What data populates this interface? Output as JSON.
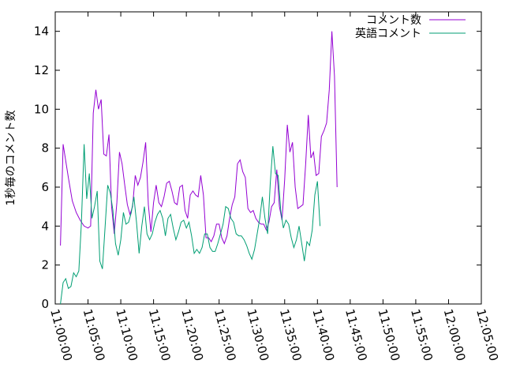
{
  "chart_data": {
    "type": "line",
    "ylabel": "1秒毎のコメント数",
    "xlabel": "",
    "title": "",
    "ylim": [
      0,
      15
    ],
    "xlim": [
      "11:00:00",
      "12:05:00"
    ],
    "yticks": [
      0,
      2,
      4,
      6,
      8,
      10,
      12,
      14
    ],
    "xticks": [
      "11:00:00",
      "11:05:00",
      "11:10:00",
      "11:15:00",
      "11:20:00",
      "11:25:00",
      "11:30:00",
      "11:35:00",
      "11:40:00",
      "11:45:00",
      "11:50:00",
      "11:55:00",
      "12:00:00",
      "12:05:00"
    ],
    "grid": false,
    "legend_position": "top-right",
    "series": [
      {
        "name": "コメント数",
        "color": "#9400d3",
        "points": [
          [
            "11:00:48",
            3.0
          ],
          [
            "11:01:12",
            8.2
          ],
          [
            "11:02:00",
            6.5
          ],
          [
            "11:02:36",
            5.3
          ],
          [
            "11:03:12",
            4.7
          ],
          [
            "11:03:48",
            4.3
          ],
          [
            "11:04:24",
            4.0
          ],
          [
            "11:05:00",
            3.9
          ],
          [
            "11:05:24",
            4.0
          ],
          [
            "11:05:48",
            9.8
          ],
          [
            "11:06:12",
            11.0
          ],
          [
            "11:06:36",
            10.0
          ],
          [
            "11:07:00",
            10.5
          ],
          [
            "11:07:24",
            7.7
          ],
          [
            "11:07:48",
            7.6
          ],
          [
            "11:08:12",
            8.7
          ],
          [
            "11:08:36",
            5.0
          ],
          [
            "11:09:00",
            3.6
          ],
          [
            "11:09:24",
            5.2
          ],
          [
            "11:09:48",
            7.8
          ],
          [
            "11:10:12",
            7.2
          ],
          [
            "11:10:36",
            6.1
          ],
          [
            "11:11:00",
            5.1
          ],
          [
            "11:11:24",
            4.6
          ],
          [
            "11:11:48",
            5.0
          ],
          [
            "11:12:12",
            6.6
          ],
          [
            "11:12:36",
            6.1
          ],
          [
            "11:13:00",
            6.5
          ],
          [
            "11:13:24",
            7.3
          ],
          [
            "11:13:48",
            8.3
          ],
          [
            "11:14:12",
            5.1
          ],
          [
            "11:14:36",
            3.7
          ],
          [
            "11:15:00",
            5.2
          ],
          [
            "11:15:24",
            6.1
          ],
          [
            "11:15:48",
            5.2
          ],
          [
            "11:16:12",
            5.0
          ],
          [
            "11:16:36",
            5.5
          ],
          [
            "11:17:00",
            6.2
          ],
          [
            "11:17:24",
            6.3
          ],
          [
            "11:17:48",
            5.8
          ],
          [
            "11:18:12",
            5.2
          ],
          [
            "11:18:36",
            5.1
          ],
          [
            "11:19:00",
            6.0
          ],
          [
            "11:19:24",
            6.1
          ],
          [
            "11:19:48",
            4.8
          ],
          [
            "11:20:12",
            4.4
          ],
          [
            "11:20:36",
            5.6
          ],
          [
            "11:21:00",
            5.8
          ],
          [
            "11:21:24",
            5.6
          ],
          [
            "11:21:48",
            5.5
          ],
          [
            "11:22:12",
            6.6
          ],
          [
            "11:22:36",
            5.6
          ],
          [
            "11:23:00",
            3.4
          ],
          [
            "11:23:24",
            3.4
          ],
          [
            "11:23:48",
            3.2
          ],
          [
            "11:24:12",
            3.5
          ],
          [
            "11:24:36",
            4.1
          ],
          [
            "11:25:00",
            4.1
          ],
          [
            "11:25:24",
            3.4
          ],
          [
            "11:25:48",
            3.1
          ],
          [
            "11:26:12",
            3.5
          ],
          [
            "11:26:36",
            4.4
          ],
          [
            "11:27:00",
            5.1
          ],
          [
            "11:27:24",
            5.5
          ],
          [
            "11:27:48",
            7.2
          ],
          [
            "11:28:12",
            7.4
          ],
          [
            "11:28:36",
            6.8
          ],
          [
            "11:29:00",
            6.5
          ],
          [
            "11:29:24",
            4.9
          ],
          [
            "11:29:48",
            4.7
          ],
          [
            "11:30:12",
            4.8
          ],
          [
            "11:30:36",
            4.4
          ],
          [
            "11:31:00",
            4.2
          ],
          [
            "11:31:24",
            4.1
          ],
          [
            "11:31:48",
            4.1
          ],
          [
            "11:32:12",
            3.8
          ],
          [
            "11:32:36",
            4.2
          ],
          [
            "11:33:00",
            5.0
          ],
          [
            "11:33:24",
            5.2
          ],
          [
            "11:33:48",
            6.9
          ],
          [
            "11:34:12",
            5.0
          ],
          [
            "11:34:36",
            4.3
          ],
          [
            "11:35:00",
            6.4
          ],
          [
            "11:35:24",
            9.2
          ],
          [
            "11:35:48",
            7.8
          ],
          [
            "11:36:12",
            8.3
          ],
          [
            "11:36:36",
            6.0
          ],
          [
            "11:37:00",
            4.9
          ],
          [
            "11:37:24",
            5.0
          ],
          [
            "11:37:48",
            5.1
          ],
          [
            "11:38:12",
            7.2
          ],
          [
            "11:38:36",
            9.7
          ],
          [
            "11:39:00",
            7.5
          ],
          [
            "11:39:24",
            7.8
          ],
          [
            "11:39:48",
            6.6
          ],
          [
            "11:40:12",
            6.7
          ],
          [
            "11:40:36",
            8.6
          ],
          [
            "11:41:00",
            8.9
          ],
          [
            "11:41:24",
            9.3
          ],
          [
            "11:41:48",
            11.0
          ],
          [
            "11:42:12",
            14.0
          ],
          [
            "11:42:36",
            11.7
          ],
          [
            "11:43:00",
            6.0
          ]
        ]
      },
      {
        "name": "英語コメント",
        "color": "#009e73",
        "points": [
          [
            "11:00:48",
            0.0
          ],
          [
            "11:01:12",
            1.1
          ],
          [
            "11:01:36",
            1.3
          ],
          [
            "11:02:00",
            0.8
          ],
          [
            "11:02:24",
            0.9
          ],
          [
            "11:02:48",
            1.6
          ],
          [
            "11:03:12",
            1.4
          ],
          [
            "11:03:36",
            1.7
          ],
          [
            "11:04:00",
            4.2
          ],
          [
            "11:04:24",
            8.2
          ],
          [
            "11:04:48",
            5.4
          ],
          [
            "11:05:12",
            6.7
          ],
          [
            "11:05:36",
            4.4
          ],
          [
            "11:06:00",
            5.0
          ],
          [
            "11:06:24",
            5.8
          ],
          [
            "11:06:48",
            2.2
          ],
          [
            "11:07:12",
            1.8
          ],
          [
            "11:07:36",
            3.9
          ],
          [
            "11:08:00",
            6.1
          ],
          [
            "11:08:24",
            5.7
          ],
          [
            "11:08:48",
            4.8
          ],
          [
            "11:09:12",
            3.1
          ],
          [
            "11:09:36",
            2.5
          ],
          [
            "11:10:00",
            3.3
          ],
          [
            "11:10:24",
            4.7
          ],
          [
            "11:10:48",
            4.1
          ],
          [
            "11:11:12",
            4.2
          ],
          [
            "11:11:36",
            4.7
          ],
          [
            "11:12:00",
            5.5
          ],
          [
            "11:12:24",
            4.2
          ],
          [
            "11:12:48",
            2.6
          ],
          [
            "11:13:12",
            4.0
          ],
          [
            "11:13:36",
            5.0
          ],
          [
            "11:14:00",
            3.6
          ],
          [
            "11:14:24",
            3.3
          ],
          [
            "11:14:48",
            3.6
          ],
          [
            "11:15:12",
            4.2
          ],
          [
            "11:15:36",
            4.6
          ],
          [
            "11:16:00",
            4.8
          ],
          [
            "11:16:24",
            4.4
          ],
          [
            "11:16:48",
            3.5
          ],
          [
            "11:17:12",
            4.4
          ],
          [
            "11:17:36",
            4.6
          ],
          [
            "11:18:00",
            3.9
          ],
          [
            "11:18:24",
            3.3
          ],
          [
            "11:18:48",
            3.7
          ],
          [
            "11:19:12",
            4.2
          ],
          [
            "11:19:36",
            4.3
          ],
          [
            "11:20:00",
            3.9
          ],
          [
            "11:20:24",
            4.2
          ],
          [
            "11:20:48",
            3.5
          ],
          [
            "11:21:12",
            2.6
          ],
          [
            "11:21:36",
            2.8
          ],
          [
            "11:22:00",
            2.6
          ],
          [
            "11:22:24",
            2.9
          ],
          [
            "11:22:48",
            3.6
          ],
          [
            "11:23:12",
            3.6
          ],
          [
            "11:23:36",
            2.9
          ],
          [
            "11:24:00",
            2.7
          ],
          [
            "11:24:24",
            2.7
          ],
          [
            "11:24:48",
            3.1
          ],
          [
            "11:25:12",
            3.6
          ],
          [
            "11:25:36",
            4.1
          ],
          [
            "11:26:00",
            5.0
          ],
          [
            "11:26:24",
            4.9
          ],
          [
            "11:26:48",
            4.4
          ],
          [
            "11:27:12",
            4.2
          ],
          [
            "11:27:36",
            3.6
          ],
          [
            "11:28:00",
            3.5
          ],
          [
            "11:28:24",
            3.5
          ],
          [
            "11:28:48",
            3.3
          ],
          [
            "11:29:12",
            3.0
          ],
          [
            "11:29:36",
            2.6
          ],
          [
            "11:30:00",
            2.3
          ],
          [
            "11:30:24",
            2.8
          ],
          [
            "11:30:48",
            3.6
          ],
          [
            "11:31:12",
            4.4
          ],
          [
            "11:31:36",
            5.5
          ],
          [
            "11:32:00",
            4.4
          ],
          [
            "11:32:24",
            3.6
          ],
          [
            "11:32:48",
            6.2
          ],
          [
            "11:33:12",
            8.1
          ],
          [
            "11:33:36",
            6.7
          ],
          [
            "11:34:00",
            6.6
          ],
          [
            "11:34:24",
            4.8
          ],
          [
            "11:34:48",
            3.9
          ],
          [
            "11:35:12",
            4.3
          ],
          [
            "11:35:36",
            4.1
          ],
          [
            "11:36:00",
            3.4
          ],
          [
            "11:36:24",
            2.9
          ],
          [
            "11:36:48",
            3.3
          ],
          [
            "11:37:12",
            4.0
          ],
          [
            "11:37:36",
            3.1
          ],
          [
            "11:38:00",
            2.2
          ],
          [
            "11:38:24",
            3.2
          ],
          [
            "11:38:48",
            3.0
          ],
          [
            "11:39:12",
            3.8
          ],
          [
            "11:39:36",
            5.6
          ],
          [
            "11:40:00",
            6.3
          ],
          [
            "11:40:24",
            4.0
          ]
        ]
      }
    ]
  }
}
